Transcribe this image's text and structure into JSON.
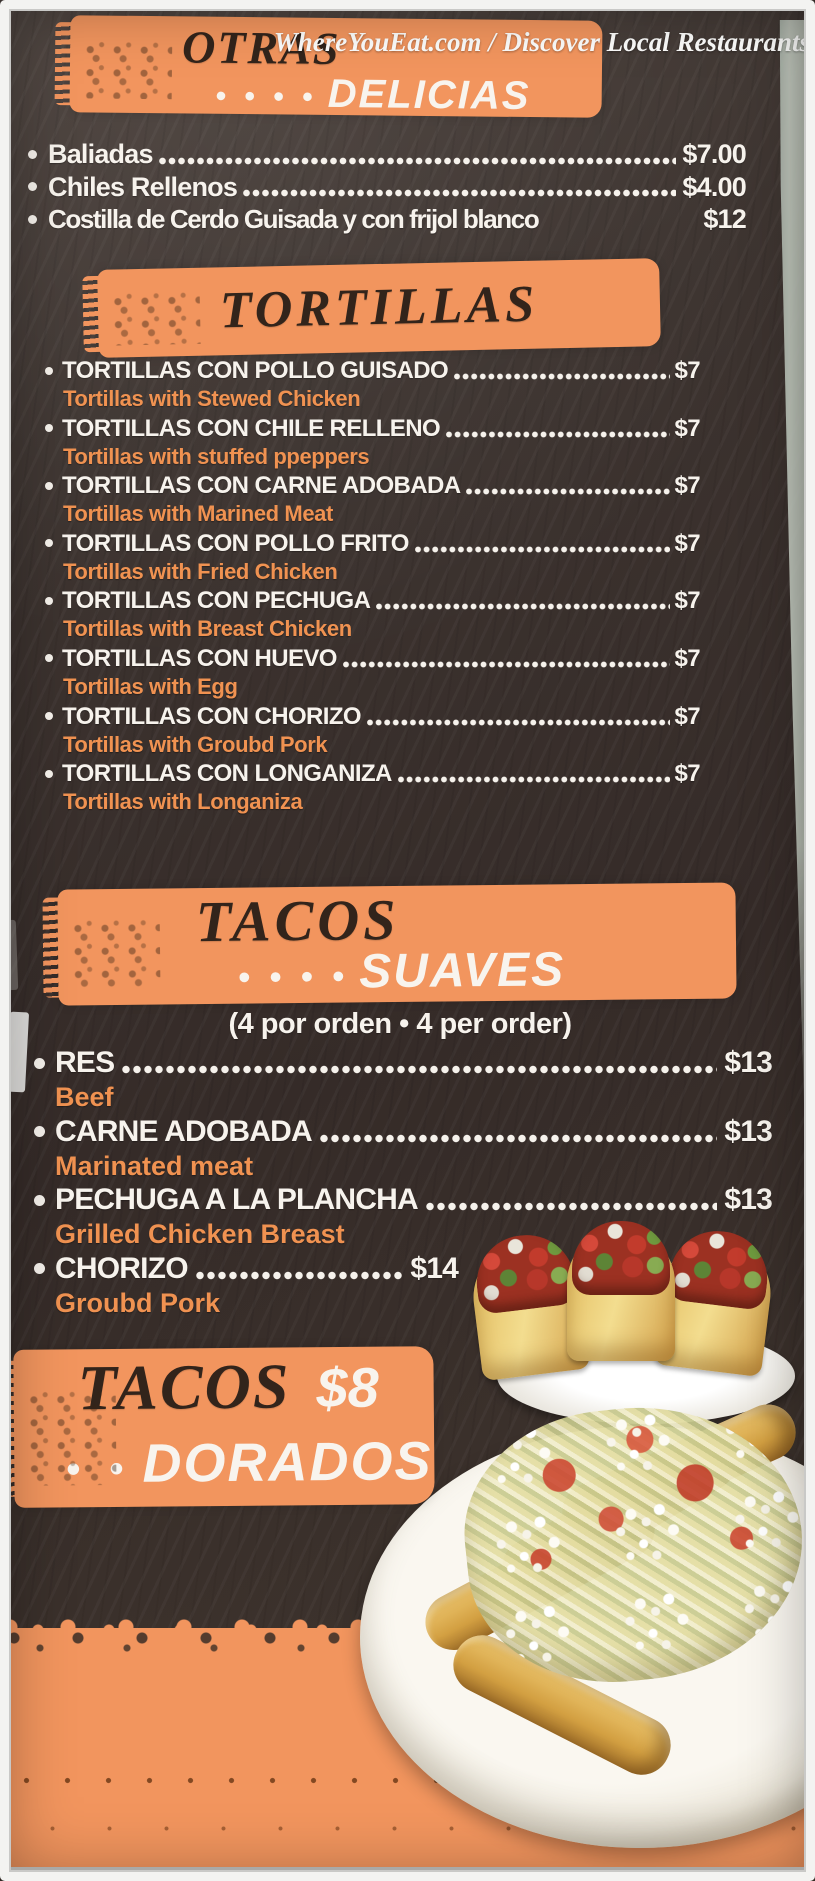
{
  "watermark": "WhereYouEat.com / Discover Local Restaurants",
  "colors": {
    "background": "#3a312c",
    "brush_orange": "#f2955e",
    "accent_orange": "#f09251",
    "text_light": "#f7f3ed",
    "text_dark": "#32241b"
  },
  "sections": {
    "otras": {
      "title_main": "OTRAS",
      "title_dots": "• • • •",
      "title_sub": "DELICIAS",
      "items": [
        {
          "name": "Baliadas",
          "price": "$7.00"
        },
        {
          "name": "Chiles Rellenos",
          "price": "$4.00"
        },
        {
          "name": "Costilla de Cerdo Guisada y con frijol blanco",
          "price": "$12",
          "no_leader": true
        }
      ]
    },
    "tortillas": {
      "title": "TORTILLAS",
      "items": [
        {
          "name": "TORTILLAS CON POLLO GUISADO",
          "price": "$7",
          "translation": "Tortillas with Stewed Chicken"
        },
        {
          "name": "TORTILLAS CON CHILE RELLENO",
          "price": "$7",
          "translation": "Tortillas with stuffed ppeppers"
        },
        {
          "name": "TORTILLAS CON CARNE ADOBADA",
          "price": "$7",
          "translation": "Tortillas with Marined Meat"
        },
        {
          "name": "TORTILLAS CON POLLO FRITO",
          "price": "$7",
          "translation": "Tortillas with Fried Chicken"
        },
        {
          "name": "TORTILLAS CON PECHUGA",
          "price": "$7",
          "translation": "Tortillas with Breast Chicken"
        },
        {
          "name": "TORTILLAS CON HUEVO",
          "price": "$7",
          "translation": "Tortillas with Egg"
        },
        {
          "name": "TORTILLAS CON CHORIZO",
          "price": "$7",
          "translation": "Tortillas with Groubd Pork"
        },
        {
          "name": "TORTILLAS CON LONGANIZA",
          "price": "$7",
          "translation": "Tortillas with Longaniza"
        }
      ]
    },
    "tacos_suaves": {
      "title_main": "TACOS",
      "title_dots": "• • • •",
      "title_sub": "SUAVES",
      "note": "(4 por orden • 4 per order)",
      "items": [
        {
          "name": "RES",
          "price": "$13",
          "translation": "Beef"
        },
        {
          "name": "CARNE ADOBADA",
          "price": "$13",
          "translation": "Marinated meat"
        },
        {
          "name": "PECHUGA A LA PLANCHA",
          "price": "$13",
          "translation": "Grilled Chicken Breast"
        },
        {
          "name": "CHORIZO",
          "price": "$14",
          "translation": "Groubd Pork"
        }
      ]
    },
    "tacos_dorados": {
      "title_main": "TACOS",
      "price": "$8",
      "title_dots": "• •",
      "title_sub": "DORADOS"
    }
  },
  "photos": {
    "soft_tacos": "Three soft tacos with meat, pico de gallo and cheese on a white plate",
    "tacos_dorados": "Plate of tacos dorados topped with shredded cabbage, crumbled cheese and salsa"
  }
}
